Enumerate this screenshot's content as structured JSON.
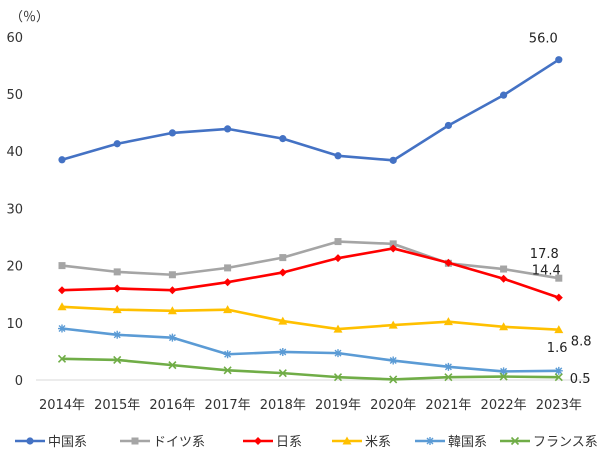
{
  "chart_data": {
    "type": "line",
    "ylabel": "（％）",
    "xlabel": "",
    "title": "",
    "ylim": [
      0,
      60
    ],
    "yticks": [
      0,
      10,
      20,
      30,
      40,
      50,
      60
    ],
    "grid": false,
    "legend_position": "bottom",
    "categories": [
      "2014年",
      "2015年",
      "2016年",
      "2017年",
      "2018年",
      "2019年",
      "2020年",
      "2021年",
      "2022年",
      "2023年"
    ],
    "series": [
      {
        "name": "中国系",
        "color": "#4472C4",
        "marker": "circle",
        "values": [
          38.5,
          41.3,
          43.2,
          43.9,
          42.2,
          39.2,
          38.4,
          44.5,
          49.8,
          56.0
        ],
        "end_label": "56.0"
      },
      {
        "name": "ドイツ系",
        "color": "#A5A5A5",
        "marker": "square",
        "values": [
          20.0,
          18.9,
          18.4,
          19.6,
          21.4,
          24.2,
          23.8,
          20.4,
          19.4,
          17.8
        ],
        "end_label": "17.8"
      },
      {
        "name": "日系",
        "color": "#FF0000",
        "marker": "diamond",
        "values": [
          15.7,
          16.0,
          15.7,
          17.1,
          18.8,
          21.3,
          23.0,
          20.5,
          17.7,
          14.4
        ],
        "end_label": "14.4"
      },
      {
        "name": "米系",
        "color": "#FFC000",
        "marker": "triangle",
        "values": [
          12.8,
          12.3,
          12.1,
          12.3,
          10.3,
          8.9,
          9.6,
          10.2,
          9.3,
          8.8
        ],
        "end_label": "8.8"
      },
      {
        "name": "韓国系",
        "color": "#5B9BD5",
        "marker": "star",
        "values": [
          9.0,
          7.9,
          7.4,
          4.5,
          4.9,
          4.7,
          3.4,
          2.3,
          1.5,
          1.6
        ],
        "end_label": "1.6"
      },
      {
        "name": "フランス系",
        "color": "#70AD47",
        "marker": "x",
        "values": [
          3.7,
          3.5,
          2.6,
          1.7,
          1.2,
          0.5,
          0.1,
          0.5,
          0.6,
          0.5
        ],
        "end_label": "0.5"
      }
    ]
  }
}
